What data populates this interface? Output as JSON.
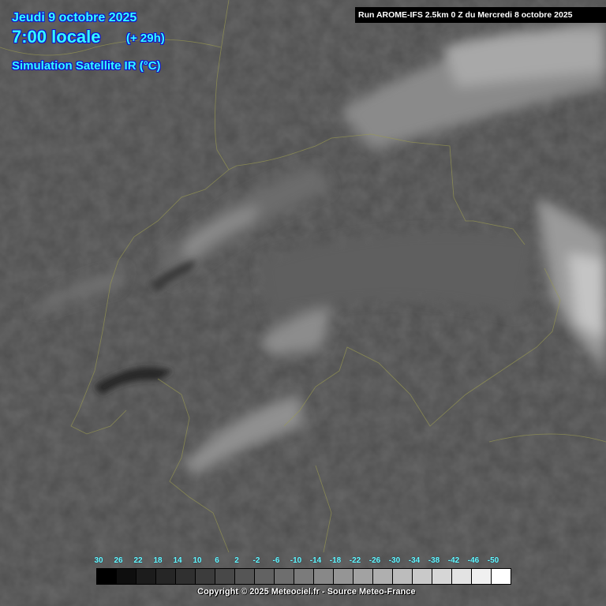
{
  "header": {
    "date": "Jeudi 9 octobre 2025",
    "time": "7:00 locale",
    "lead": "(+ 29h)",
    "product": "Simulation Satellite IR (°C)",
    "run": "Run AROME-IFS 2.5km 0 Z du Mercredi 8 octobre 2025"
  },
  "legend": {
    "labels": [
      "30",
      "26",
      "22",
      "18",
      "14",
      "10",
      "6",
      "2",
      "-2",
      "-6",
      "-10",
      "-14",
      "-18",
      "-22",
      "-26",
      "-30",
      "-34",
      "-38",
      "-42",
      "-46",
      "-50"
    ],
    "colors": [
      "#000000",
      "#0e0e0e",
      "#1c1c1c",
      "#262626",
      "#303030",
      "#3c3c3c",
      "#484848",
      "#555555",
      "#626262",
      "#6e6e6e",
      "#7b7b7b",
      "#888888",
      "#959595",
      "#a2a2a2",
      "#afafaf",
      "#bcbcbc",
      "#c9c9c9",
      "#d6d6d6",
      "#e3e3e3",
      "#f0f0f0",
      "#ffffff"
    ]
  },
  "copyright": "Copyright © 2025 Meteociel.fr - Source Meteo-France",
  "colors": {
    "text": "#33ffff",
    "text_outline": "#1010d0",
    "borders": "#9a9a50"
  }
}
